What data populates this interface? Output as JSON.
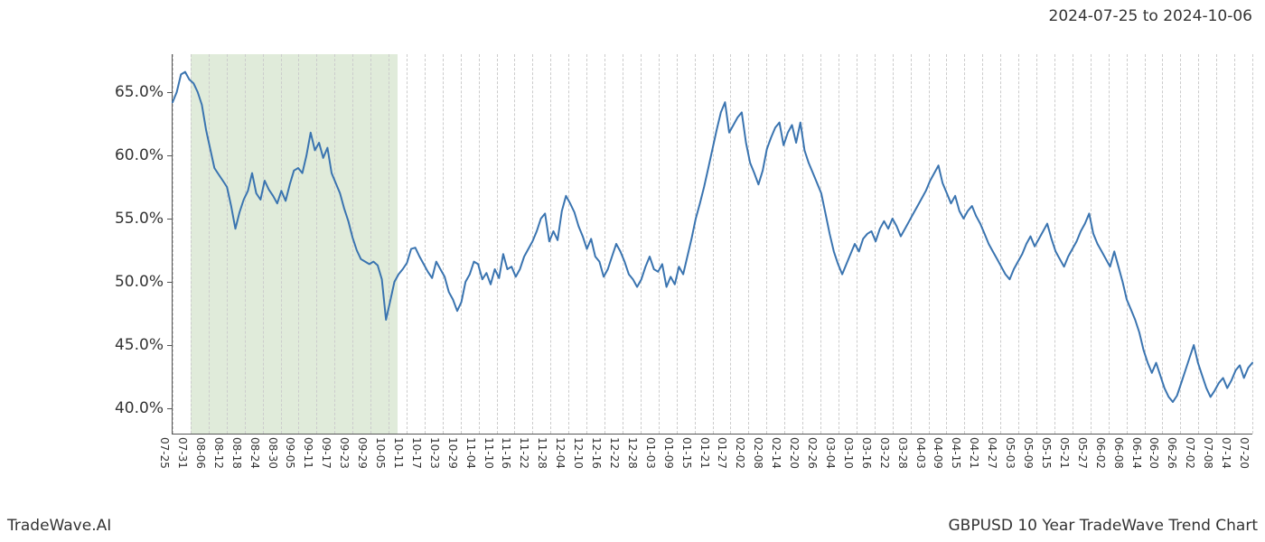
{
  "header": {
    "date_range": "2024-07-25 to 2024-10-06"
  },
  "footer": {
    "left": "TradeWave.AI",
    "right": "GBPUSD 10 Year TradeWave Trend Chart"
  },
  "chart": {
    "type": "line",
    "background_color": "#ffffff",
    "axis_color": "#555555",
    "grid_style": "dashed",
    "grid_color": "#cccccc",
    "line_color": "#3a74b0",
    "line_width": 2,
    "highlight_band_color": "#dbe8d4",
    "title_fontsize": 17,
    "xtick_fontsize": 12,
    "ytick_fontsize": 17,
    "xtick_rotation": 90,
    "ylim": [
      38,
      68
    ],
    "ytick_step": 5,
    "yticks": [
      "40.0%",
      "45.0%",
      "50.0%",
      "55.0%",
      "60.0%",
      "65.0%"
    ],
    "ytick_values": [
      40,
      45,
      50,
      55,
      60,
      65
    ],
    "xticks": [
      "07-25",
      "07-31",
      "08-06",
      "08-12",
      "08-18",
      "08-24",
      "08-30",
      "09-05",
      "09-11",
      "09-17",
      "09-23",
      "09-29",
      "10-05",
      "10-11",
      "10-17",
      "10-23",
      "10-29",
      "11-04",
      "11-10",
      "11-16",
      "11-22",
      "11-28",
      "12-04",
      "12-10",
      "12-16",
      "12-22",
      "12-28",
      "01-03",
      "01-09",
      "01-15",
      "01-21",
      "01-27",
      "02-02",
      "02-08",
      "02-14",
      "02-20",
      "02-26",
      "03-04",
      "03-10",
      "03-16",
      "03-22",
      "03-28",
      "04-03",
      "04-09",
      "04-15",
      "04-21",
      "04-27",
      "05-03",
      "05-09",
      "05-15",
      "05-21",
      "05-27",
      "06-02",
      "06-08",
      "06-14",
      "06-20",
      "06-26",
      "07-02",
      "07-08",
      "07-14",
      "07-20"
    ],
    "highlight": {
      "start_idx": 1,
      "end_idx": 12.5
    },
    "series": [
      64.2,
      65.0,
      66.4,
      66.6,
      66.0,
      65.7,
      65.0,
      64.0,
      62.0,
      60.5,
      59.0,
      58.5,
      58.0,
      57.5,
      56.0,
      54.2,
      55.5,
      56.5,
      57.2,
      58.6,
      57.0,
      56.5,
      58.0,
      57.3,
      56.8,
      56.2,
      57.2,
      56.4,
      57.7,
      58.8,
      59.0,
      58.6,
      60.0,
      61.8,
      60.4,
      61.0,
      59.8,
      60.6,
      58.6,
      57.8,
      57.0,
      55.8,
      54.8,
      53.5,
      52.5,
      51.8,
      51.6,
      51.4,
      51.6,
      51.3,
      50.2,
      47.0,
      48.5,
      50.0,
      50.6,
      51.0,
      51.5,
      52.6,
      52.7,
      52.0,
      51.4,
      50.8,
      50.3,
      51.6,
      51.0,
      50.4,
      49.2,
      48.6,
      47.7,
      48.4,
      50.0,
      50.6,
      51.6,
      51.4,
      50.2,
      50.7,
      49.8,
      51.0,
      50.3,
      52.2,
      51.0,
      51.2,
      50.4,
      51.0,
      52.0,
      52.6,
      53.2,
      54.0,
      55.0,
      55.4,
      53.2,
      54.0,
      53.3,
      55.6,
      56.8,
      56.2,
      55.5,
      54.4,
      53.6,
      52.6,
      53.4,
      52.0,
      51.6,
      50.4,
      51.0,
      52.0,
      53.0,
      52.4,
      51.6,
      50.6,
      50.2,
      49.6,
      50.2,
      51.2,
      52.0,
      51.0,
      50.8,
      51.4,
      49.6,
      50.4,
      49.8,
      51.2,
      50.6,
      52.0,
      53.4,
      55.0,
      56.2,
      57.5,
      59.0,
      60.5,
      62.0,
      63.4,
      64.2,
      61.8,
      62.4,
      63.0,
      63.4,
      61.0,
      59.4,
      58.6,
      57.7,
      58.8,
      60.5,
      61.4,
      62.2,
      62.6,
      60.8,
      61.8,
      62.4,
      61.0,
      62.6,
      60.4,
      59.4,
      58.6,
      57.8,
      57.0,
      55.4,
      53.8,
      52.4,
      51.4,
      50.6,
      51.4,
      52.2,
      53.0,
      52.4,
      53.4,
      53.8,
      54.0,
      53.2,
      54.2,
      54.8,
      54.2,
      55.0,
      54.4,
      53.6,
      54.2,
      54.8,
      55.4,
      56.0,
      56.6,
      57.2,
      58.0,
      58.6,
      59.2,
      57.8,
      57.0,
      56.2,
      56.8,
      55.6,
      55.0,
      55.6,
      56.0,
      55.2,
      54.6,
      53.8,
      53.0,
      52.4,
      51.8,
      51.2,
      50.6,
      50.2,
      51.0,
      51.6,
      52.2,
      53.0,
      53.6,
      52.8,
      53.4,
      54.0,
      54.6,
      53.4,
      52.4,
      51.8,
      51.2,
      52.0,
      52.6,
      53.2,
      54.0,
      54.6,
      55.4,
      53.8,
      53.0,
      52.4,
      51.8,
      51.2,
      52.4,
      51.2,
      50.0,
      48.6,
      47.8,
      47.0,
      46.0,
      44.6,
      43.6,
      42.8,
      43.6,
      42.6,
      41.6,
      40.9,
      40.5,
      41.0,
      42.0,
      43.0,
      44.0,
      45.0,
      43.6,
      42.6,
      41.6,
      40.9,
      41.4,
      42.0,
      42.4,
      41.6,
      42.2,
      43.0,
      43.4,
      42.4,
      43.2,
      43.6
    ]
  }
}
